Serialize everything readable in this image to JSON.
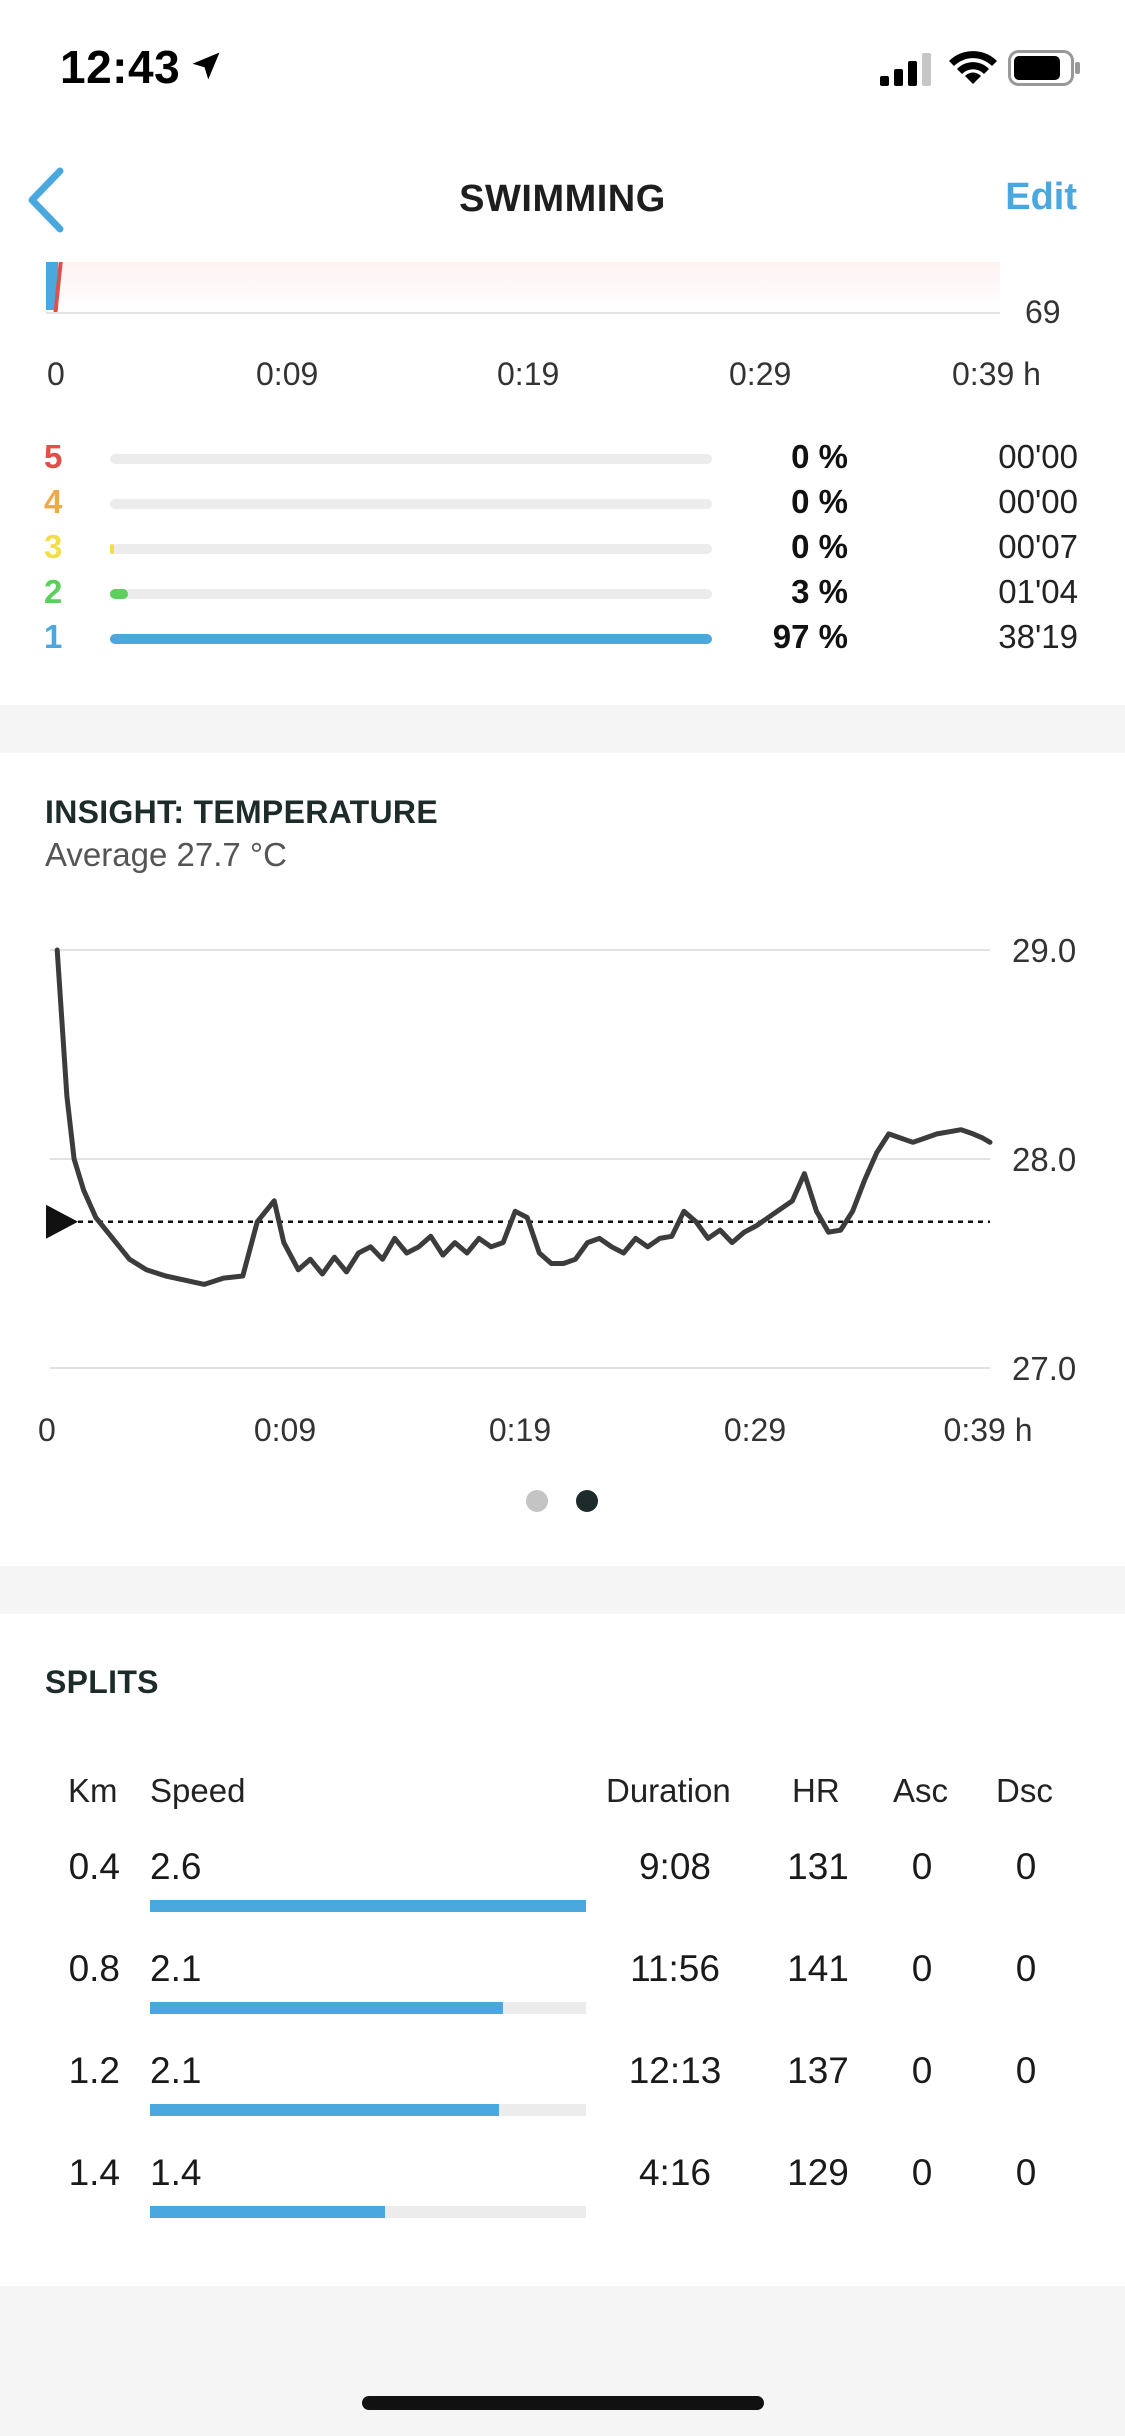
{
  "status_bar": {
    "time": "12:43"
  },
  "nav": {
    "title": "SWIMMING",
    "edit_label": "Edit"
  },
  "hr_chart": {
    "axis_value": "69",
    "time_ticks": [
      "0",
      "0:09",
      "0:19",
      "0:29",
      "0:39 h"
    ]
  },
  "zones": [
    {
      "zone": "5",
      "percent": "0 %",
      "time": "00'00",
      "fraction": 0.0,
      "color": "#e0504a"
    },
    {
      "zone": "4",
      "percent": "0 %",
      "time": "00'00",
      "fraction": 0.0,
      "color": "#f0a84a"
    },
    {
      "zone": "3",
      "percent": "0 %",
      "time": "00'07",
      "fraction": 0.003,
      "color": "#f2dd4a"
    },
    {
      "zone": "2",
      "percent": "3 %",
      "time": "01'04",
      "fraction": 0.03,
      "color": "#5ccf5c"
    },
    {
      "zone": "1",
      "percent": "97 %",
      "time": "38'19",
      "fraction": 1.0,
      "color": "#4aa8de"
    }
  ],
  "insight": {
    "title": "INSIGHT: TEMPERATURE",
    "subtitle": "Average 27.7 °C"
  },
  "chart_data": {
    "type": "line",
    "title": "INSIGHT: TEMPERATURE",
    "xlabel": "",
    "ylabel": "",
    "x_tick_labels": [
      "0",
      "0:09",
      "0:19",
      "0:29",
      "0:39 h"
    ],
    "y_tick_labels": [
      "29.0",
      "28.0",
      "27.0"
    ],
    "ylim": [
      27.0,
      29.0
    ],
    "xlim_min": [
      0,
      39
    ],
    "average": 27.7,
    "grid": true,
    "series": [
      {
        "x": [
          0.3,
          0.7,
          1.0,
          1.4,
          1.9,
          2.6,
          3.3,
          4.0,
          4.8,
          5.6,
          6.4,
          7.2,
          8.0,
          8.6,
          9.3,
          9.7,
          10.3,
          10.8,
          11.3,
          11.8,
          12.3,
          12.8,
          13.3,
          13.8,
          14.3,
          14.8,
          15.3,
          15.8,
          16.3,
          16.8,
          17.3,
          17.8,
          18.3,
          18.8,
          19.3,
          19.8,
          20.3,
          20.8,
          21.3,
          21.8,
          22.3,
          22.8,
          23.3,
          23.8,
          24.3,
          24.8,
          25.3,
          25.8,
          26.3,
          26.8,
          27.3,
          27.8,
          28.3,
          28.8,
          29.3,
          29.8,
          30.3,
          30.8,
          31.3,
          31.8,
          32.3,
          32.8,
          33.3,
          33.8,
          34.3,
          34.8,
          35.3,
          35.8,
          36.3,
          36.8,
          37.3,
          37.8,
          38.3,
          38.7,
          39.0
        ],
        "values": [
          29.0,
          28.3,
          28.0,
          27.85,
          27.72,
          27.62,
          27.52,
          27.47,
          27.44,
          27.42,
          27.4,
          27.43,
          27.44,
          27.7,
          27.8,
          27.6,
          27.47,
          27.52,
          27.45,
          27.53,
          27.46,
          27.55,
          27.58,
          27.52,
          27.62,
          27.55,
          27.58,
          27.63,
          27.54,
          27.6,
          27.55,
          27.62,
          27.58,
          27.6,
          27.75,
          27.72,
          27.55,
          27.5,
          27.5,
          27.52,
          27.6,
          27.62,
          27.58,
          27.55,
          27.62,
          27.58,
          27.62,
          27.63,
          27.75,
          27.7,
          27.62,
          27.66,
          27.6,
          27.65,
          27.68,
          27.72,
          27.76,
          27.8,
          27.93,
          27.75,
          27.65,
          27.66,
          27.75,
          27.9,
          28.03,
          28.12,
          28.1,
          28.08,
          28.1,
          28.12,
          28.13,
          28.14,
          28.12,
          28.1,
          28.08
        ],
        "color": "#3c3c3c"
      }
    ]
  },
  "pager": {
    "count": 2,
    "active_index": 1
  },
  "splits": {
    "title": "SPLITS",
    "headers": {
      "km": "Km",
      "speed": "Speed",
      "duration": "Duration",
      "hr": "HR",
      "asc": "Asc",
      "dsc": "Dsc"
    },
    "rows": [
      {
        "km": "0.4",
        "speed": "2.6",
        "duration": "9:08",
        "hr": "131",
        "asc": "0",
        "dsc": "0",
        "fraction": 1.0
      },
      {
        "km": "0.8",
        "speed": "2.1",
        "duration": "11:56",
        "hr": "141",
        "asc": "0",
        "dsc": "0",
        "fraction": 0.81
      },
      {
        "km": "1.2",
        "speed": "2.1",
        "duration": "12:13",
        "hr": "137",
        "asc": "0",
        "dsc": "0",
        "fraction": 0.8
      },
      {
        "km": "1.4",
        "speed": "1.4",
        "duration": "4:16",
        "hr": "129",
        "asc": "0",
        "dsc": "0",
        "fraction": 0.54
      }
    ]
  }
}
